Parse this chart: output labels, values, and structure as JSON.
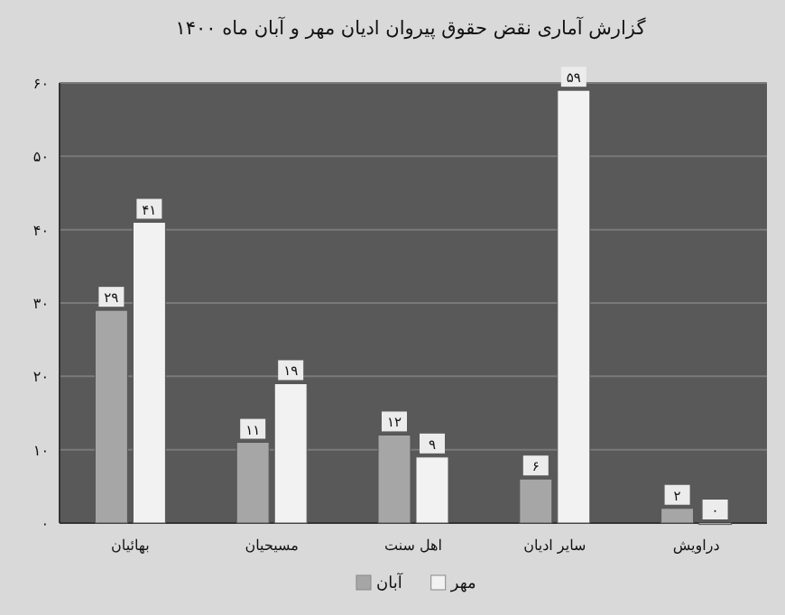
{
  "chart_data": {
    "type": "bar",
    "title": "گزارش آماری نقض حقوق پیروان ادیان مهر و آبان ماه ۱۴۰۰",
    "categories": [
      "بهائیان",
      "مسیحیان",
      "اهل سنت",
      "سایر ادیان",
      "دراویش"
    ],
    "series": [
      {
        "name": "آبان",
        "color": "#a6a6a6",
        "values": [
          29,
          11,
          12,
          6,
          2
        ],
        "value_labels": [
          "۲۹",
          "۱۱",
          "۱۲",
          "۶",
          "۲"
        ]
      },
      {
        "name": "مهر",
        "color": "#f2f2f2",
        "values": [
          41,
          19,
          9,
          59,
          0
        ],
        "value_labels": [
          "۴۱",
          "۱۹",
          "۹",
          "۵۹",
          "۰"
        ]
      }
    ],
    "ylim": [
      0,
      60
    ],
    "yticks": [
      {
        "value": 0,
        "label": "۰"
      },
      {
        "value": 10,
        "label": "۱۰"
      },
      {
        "value": 20,
        "label": "۲۰"
      },
      {
        "value": 30,
        "label": "۳۰"
      },
      {
        "value": 40,
        "label": "۴۰"
      },
      {
        "value": 50,
        "label": "۵۰"
      },
      {
        "value": 60,
        "label": "۶۰"
      }
    ],
    "grid": "y",
    "legend": "bottom"
  }
}
